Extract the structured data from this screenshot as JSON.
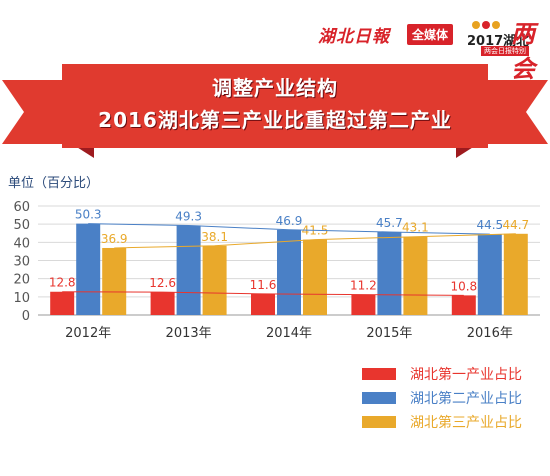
{
  "header": {
    "brand_logo": "湖北日報",
    "brand_badge": "全媒体",
    "event_year": "2017湖北",
    "event_mark": "两会",
    "event_sub": "两会日报特别"
  },
  "title": {
    "line1": "调整产业结构",
    "line2": "2016湖北第三产业比重超过第二产业"
  },
  "colors": {
    "ribbon": "#e03a2f",
    "ribbon_dark": "#9e1b1f",
    "primary": "#e8352e",
    "secondary": "#4a80c6",
    "tertiary": "#e9a92b"
  },
  "chart_data": {
    "type": "bar",
    "ylabel": "单位（百分比）",
    "ylim": [
      0,
      60
    ],
    "yticks": [
      "0",
      "10",
      "20",
      "30",
      "40",
      "50",
      "60"
    ],
    "categories": [
      "2012年",
      "2013年",
      "2014年",
      "2015年",
      "2016年"
    ],
    "series": [
      {
        "name": "湖北第一产业占比",
        "color": "#e8352e",
        "values": [
          12.8,
          12.6,
          11.6,
          11.2,
          10.8
        ],
        "labels": [
          "12.8",
          "12.6",
          "11.6",
          "11.2",
          "10.8"
        ]
      },
      {
        "name": "湖北第二产业占比",
        "color": "#4a80c6",
        "values": [
          50.3,
          49.3,
          46.9,
          45.7,
          44.5
        ],
        "labels": [
          "50.3",
          "49.3",
          "46.9",
          "45.7",
          "44.5"
        ]
      },
      {
        "name": "湖北第三产业占比",
        "color": "#e9a92b",
        "values": [
          36.9,
          38.1,
          41.5,
          43.1,
          44.7
        ],
        "labels": [
          "36.9",
          "38.1",
          "41.5",
          "43.1",
          "44.7"
        ]
      }
    ],
    "grid": true,
    "legend": "bottom-right"
  }
}
